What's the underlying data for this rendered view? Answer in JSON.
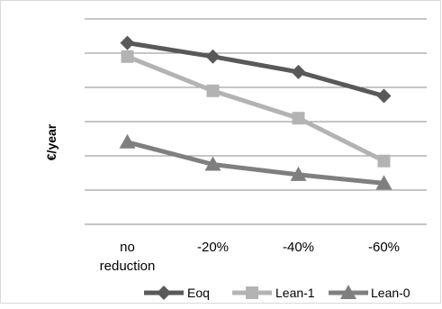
{
  "chart_data": {
    "type": "line",
    "title": "",
    "xlabel": "",
    "ylabel": "€/year",
    "categories": [
      "no reduction",
      "-20%",
      "-40%",
      "-60%"
    ],
    "category_lines": [
      [
        "no",
        "reduction"
      ],
      [
        "-20%"
      ],
      [
        "-40%"
      ],
      [
        "-60%"
      ]
    ],
    "ylim": [
      0,
      6
    ],
    "y_ticks": [
      0,
      1,
      2,
      3,
      4,
      5,
      6
    ],
    "y_tick_labels_visible": false,
    "grid": true,
    "legend_position": "bottom-right",
    "series": [
      {
        "name": "Eoq",
        "values": [
          5.3,
          4.9,
          4.45,
          3.75
        ],
        "color": "#595959",
        "marker": "diamond"
      },
      {
        "name": "Lean-1",
        "values": [
          4.9,
          3.9,
          3.1,
          1.85
        ],
        "color": "#b3b3b3",
        "marker": "square"
      },
      {
        "name": "Lean-0",
        "values": [
          2.4,
          1.75,
          1.45,
          1.2
        ],
        "color": "#7f7f7f",
        "marker": "triangle"
      }
    ]
  }
}
